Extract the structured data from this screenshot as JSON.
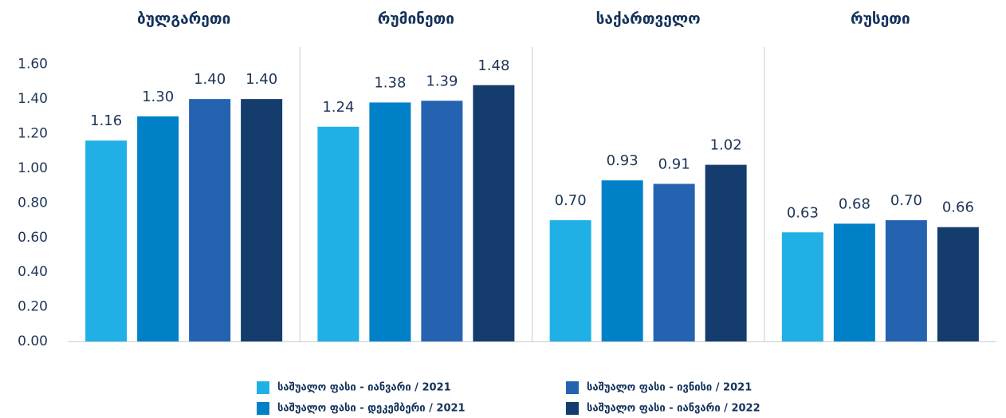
{
  "chart_data": {
    "type": "bar",
    "categories": [
      "ბულგარეთი",
      "რუმინეთი",
      "საქართველო",
      "რუსეთი"
    ],
    "series": [
      {
        "name": "საშუალო ფასი - იანვარი / 2021",
        "color": "#21b0e6",
        "values": [
          1.16,
          1.24,
          0.7,
          0.63
        ],
        "value_labels": [
          "1.16",
          "1.24",
          "0.70",
          "0.63"
        ]
      },
      {
        "name": "საშუალო ფასი - დეკემბერი / 2021",
        "color": "#0081c7",
        "values": [
          1.3,
          1.38,
          0.93,
          0.68
        ],
        "value_labels": [
          "1.30",
          "1.38",
          "0.93",
          "0.68"
        ]
      },
      {
        "name": "საშუალო ფასი - ივნისი / 2021",
        "color": "#2563b1",
        "values": [
          1.4,
          1.39,
          0.91,
          0.7
        ],
        "value_labels": [
          "1.40",
          "1.39",
          "0.91",
          "0.70"
        ]
      },
      {
        "name": "საშუალო ფასი - იანვარი / 2022",
        "color": "#143d6e",
        "values": [
          1.4,
          1.48,
          1.02,
          0.66
        ],
        "value_labels": [
          "1.40",
          "1.48",
          "1.02",
          "0.66"
        ]
      }
    ],
    "ylim": [
      0,
      1.7
    ],
    "yticks": [
      {
        "value": 0,
        "label": "0.00"
      },
      {
        "value": 0.2,
        "label": "0.20"
      },
      {
        "value": 0.4,
        "label": "0.40"
      },
      {
        "value": 0.6,
        "label": "0.60"
      },
      {
        "value": 0.8,
        "label": "0.80"
      },
      {
        "value": 1,
        "label": "1.00"
      },
      {
        "value": 1.2,
        "label": "1.20"
      },
      {
        "value": 1.4,
        "label": "1.40"
      },
      {
        "value": 1.6,
        "label": "1.60"
      }
    ],
    "grid": false
  }
}
